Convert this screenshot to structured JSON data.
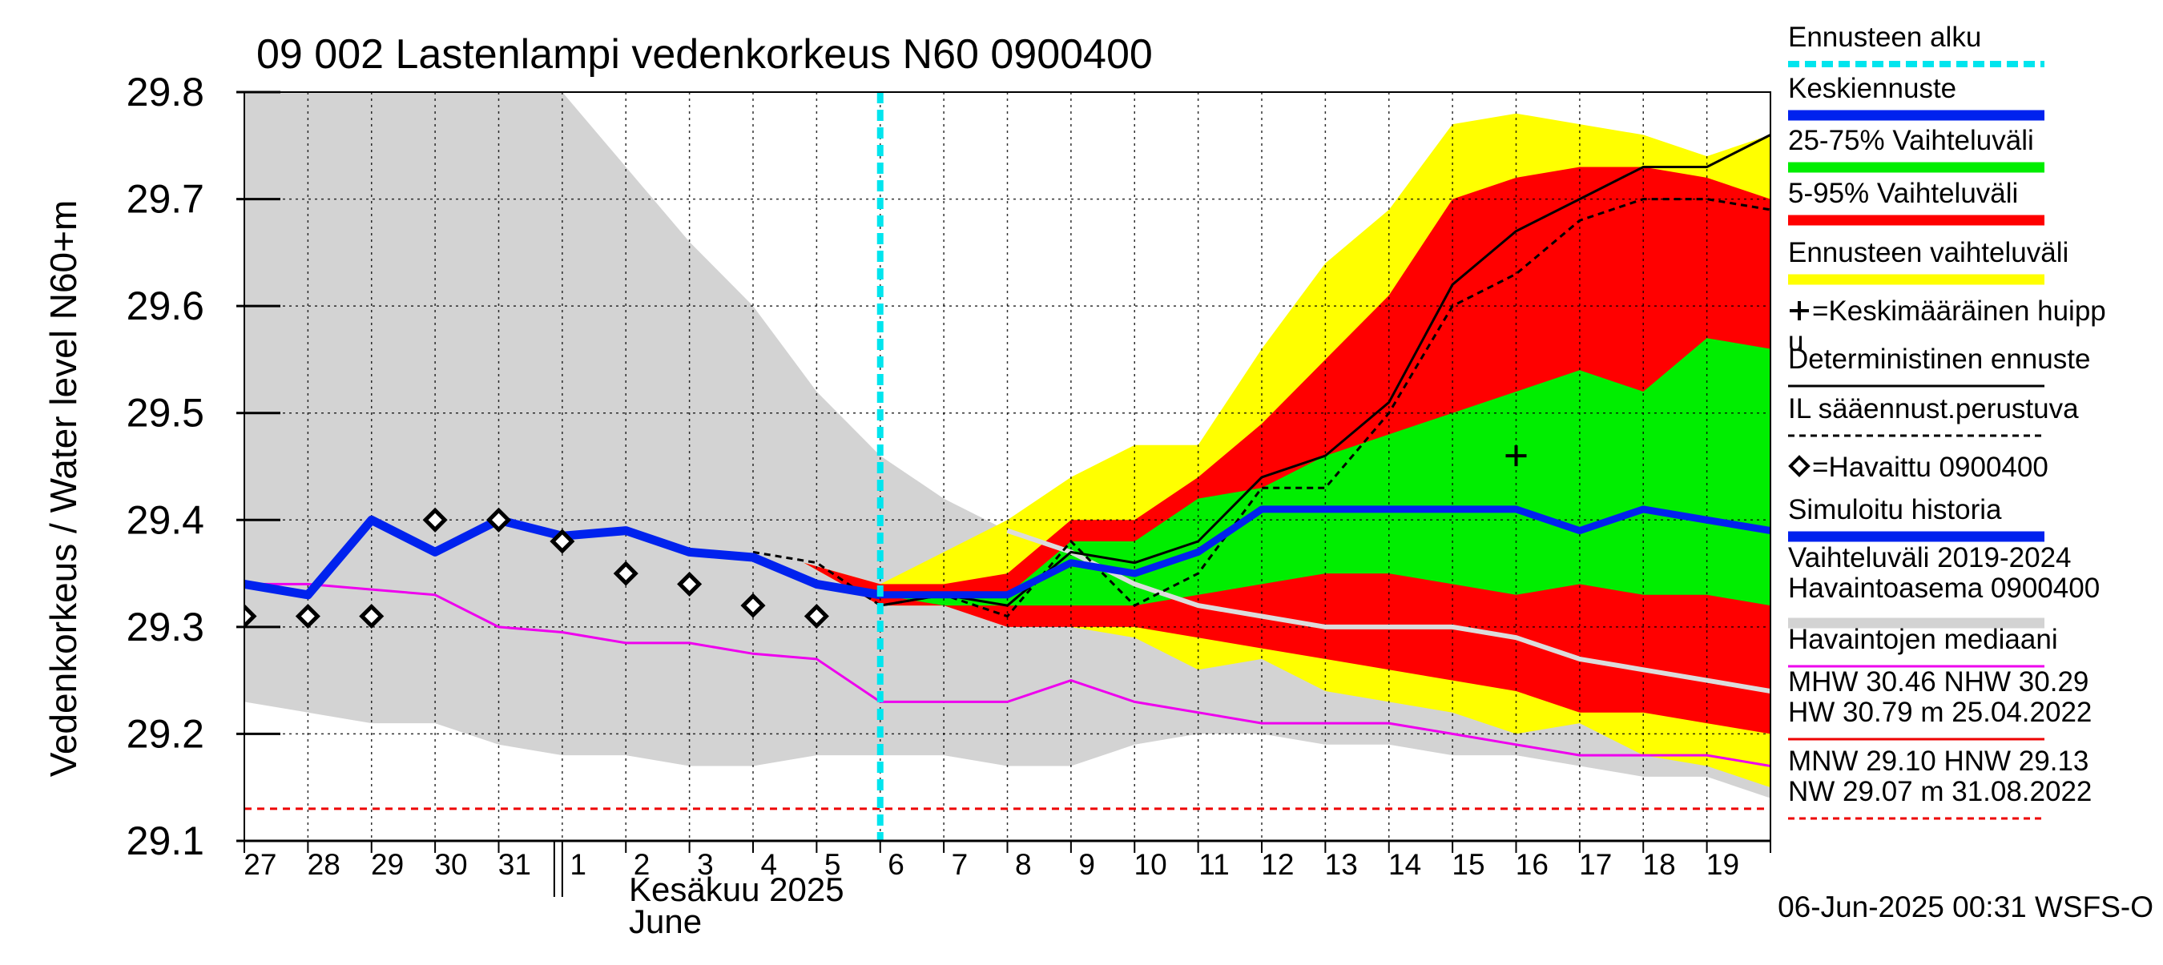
{
  "chart_data": {
    "type": "area",
    "title": "09 002 Lastenlampi vedenkorkeus N60 0900400",
    "ylabel": "Vedenkorkeus / Water level   N60+m",
    "ylim": [
      29.1,
      29.8
    ],
    "y_ticks": [
      "29.1",
      "29.2",
      "29.3",
      "29.4",
      "29.5",
      "29.6",
      "29.7",
      "29.8"
    ],
    "x_day_labels": [
      "27",
      "28",
      "29",
      "30",
      "31",
      "1",
      "2",
      "3",
      "4",
      "5",
      "6",
      "7",
      "8",
      "9",
      "10",
      "11",
      "12",
      "13",
      "14",
      "15",
      "16",
      "17",
      "18",
      "19"
    ],
    "month_label_fi": "Kesäkuu  2025",
    "month_label_en": "June",
    "timestamp": "06-Jun-2025 00:31 WSFS-O",
    "forecast_start_index": 10,
    "grid": true,
    "legend_placement": "right",
    "legend": [
      {
        "label": "Ennusteen alku",
        "color": "#00e5ee",
        "style": "dotted-thick"
      },
      {
        "label": "Keskiennuste",
        "color": "#0022ee",
        "style": "thick"
      },
      {
        "label": "25-75% Vaihteluväli",
        "color": "#00ee00",
        "style": "thick"
      },
      {
        "label": "5-95% Vaihteluväli",
        "color": "#ff0000",
        "style": "thick"
      },
      {
        "label": "Ennusteen vaihteluväli",
        "color": "#ffff00",
        "style": "thick"
      },
      {
        "label": "=Keskimääräinen huipp",
        "label2": "u",
        "color": "#000000",
        "style": "plus"
      },
      {
        "label": "Deterministinen ennuste",
        "color": "#000000",
        "style": "line"
      },
      {
        "label": "IL sääennust.perustuva",
        "color": "#000000",
        "style": "dashed"
      },
      {
        "label": "=Havaittu 0900400",
        "color": "#000000",
        "style": "diamond"
      },
      {
        "label": "Simuloitu historia",
        "color": "#0022ee",
        "style": "thick"
      },
      {
        "label": "Vaihteluväli 2019-2024",
        "label2": " Havaintoasema 0900400",
        "color": "#d3d3d3",
        "style": "thick"
      },
      {
        "label": "Havaintojen mediaani",
        "color": "#ee00ee",
        "style": "line"
      },
      {
        "label": "MHW  30.46 NHW  30.29",
        "label2": "HW  30.79 m 25.04.2022",
        "color": "#ee0000",
        "style": "line"
      },
      {
        "label": "MNW  29.10 HNW  29.13",
        "label2": "NW  29.07 m 31.08.2022",
        "color": "#ee0000",
        "style": "dashed"
      }
    ],
    "reference_line": {
      "name": "HNW",
      "y": 29.13,
      "color": "#ee0000"
    },
    "series": {
      "hist_range_x": [
        0,
        1,
        2,
        3,
        4,
        5,
        6,
        7,
        8,
        9,
        10,
        11,
        12,
        13,
        14,
        15,
        16,
        17,
        18,
        19,
        20,
        21,
        22,
        23,
        24
      ],
      "hist_range_upper": [
        29.8,
        29.8,
        29.8,
        29.8,
        29.8,
        29.8,
        29.73,
        29.66,
        29.6,
        29.52,
        29.46,
        29.42,
        29.39,
        29.36,
        29.34,
        29.32,
        29.31,
        29.3,
        29.3,
        29.3,
        29.29,
        29.27,
        29.25,
        29.24,
        29.23
      ],
      "hist_range_lower": [
        29.23,
        29.22,
        29.21,
        29.21,
        29.19,
        29.18,
        29.18,
        29.17,
        29.17,
        29.18,
        29.18,
        29.18,
        29.17,
        29.17,
        29.19,
        29.2,
        29.2,
        29.19,
        29.19,
        29.18,
        29.18,
        29.17,
        29.16,
        29.16,
        29.14
      ],
      "forecast_x": [
        8.8,
        10,
        11,
        12,
        13,
        14,
        15,
        16,
        17,
        18,
        19,
        20,
        21,
        22,
        23,
        24
      ],
      "envelope_upper": [
        29.36,
        29.34,
        29.37,
        29.4,
        29.44,
        29.47,
        29.47,
        29.56,
        29.64,
        29.69,
        29.77,
        29.78,
        29.77,
        29.76,
        29.74,
        29.76
      ],
      "envelope_lower": [
        29.36,
        29.32,
        29.32,
        29.31,
        29.3,
        29.29,
        29.26,
        29.27,
        29.24,
        29.23,
        29.22,
        29.2,
        29.21,
        29.18,
        29.17,
        29.15
      ],
      "p5_95_upper": [
        29.36,
        29.34,
        29.34,
        29.35,
        29.4,
        29.4,
        29.44,
        29.49,
        29.55,
        29.61,
        29.7,
        29.72,
        29.73,
        29.73,
        29.72,
        29.7
      ],
      "p5_95_lower": [
        29.36,
        29.32,
        29.32,
        29.3,
        29.3,
        29.3,
        29.29,
        29.28,
        29.27,
        29.26,
        29.25,
        29.24,
        29.22,
        29.22,
        29.21,
        29.2
      ],
      "p25_75_upper": [
        29.36,
        29.33,
        29.33,
        29.33,
        29.38,
        29.38,
        29.42,
        29.43,
        29.46,
        29.48,
        29.5,
        29.52,
        29.54,
        29.52,
        29.57,
        29.56
      ],
      "p25_75_lower": [
        29.36,
        29.33,
        29.32,
        29.32,
        29.32,
        29.32,
        29.33,
        29.34,
        29.35,
        29.35,
        29.34,
        29.33,
        29.34,
        29.33,
        29.33,
        29.32
      ],
      "observed_x": [
        0,
        1,
        2,
        3,
        4,
        5,
        6,
        7,
        8,
        9
      ],
      "observed_y": [
        29.31,
        29.31,
        29.31,
        29.4,
        29.4,
        29.38,
        29.35,
        29.34,
        29.32,
        29.31
      ],
      "simulated_x": [
        0,
        1,
        2,
        3,
        4,
        5,
        6,
        7,
        8,
        9,
        10
      ],
      "simulated_y": [
        29.34,
        29.33,
        29.4,
        29.37,
        29.4,
        29.385,
        29.39,
        29.37,
        29.365,
        29.34,
        29.33
      ],
      "mean_forecast_x": [
        10,
        11,
        12,
        13,
        14,
        15,
        16,
        17,
        18,
        19,
        20,
        21,
        22,
        23,
        24
      ],
      "mean_forecast_y": [
        29.33,
        29.33,
        29.33,
        29.36,
        29.35,
        29.37,
        29.41,
        29.41,
        29.41,
        29.41,
        29.41,
        29.39,
        29.41,
        29.4,
        29.39
      ],
      "deterministic_x": [
        10,
        11,
        12,
        13,
        14,
        15,
        16,
        17,
        18,
        19,
        20,
        21,
        22,
        23,
        24
      ],
      "deterministic_y": [
        29.32,
        29.33,
        29.32,
        29.37,
        29.36,
        29.38,
        29.44,
        29.46,
        29.51,
        29.62,
        29.67,
        29.7,
        29.73,
        29.73,
        29.76
      ],
      "il_forecast_x": [
        8,
        9,
        10,
        11,
        12,
        13,
        14,
        15,
        16,
        17,
        18,
        19,
        20,
        21,
        22,
        23,
        24
      ],
      "il_forecast_y": [
        29.37,
        29.36,
        29.32,
        29.33,
        29.31,
        29.38,
        29.32,
        29.35,
        29.43,
        29.43,
        29.5,
        29.6,
        29.63,
        29.68,
        29.7,
        29.7,
        29.69
      ],
      "median_x": [
        0,
        1,
        2,
        3,
        4,
        5,
        6,
        7,
        8,
        9,
        10,
        11,
        12,
        13,
        14,
        15,
        16,
        17,
        18,
        19,
        20,
        21,
        22,
        23,
        24
      ],
      "median_y": [
        29.34,
        29.34,
        29.335,
        29.33,
        29.3,
        29.295,
        29.285,
        29.285,
        29.275,
        29.27,
        29.23,
        29.23,
        29.23,
        29.25,
        29.23,
        29.22,
        29.21,
        29.21,
        29.21,
        29.2,
        29.19,
        29.18,
        29.18,
        29.18,
        29.17
      ],
      "simulated_forecast_gray_x": [
        12,
        13,
        14,
        15,
        16,
        17,
        18,
        19,
        20,
        21,
        22,
        23,
        24
      ],
      "simulated_forecast_gray_y": [
        29.39,
        29.37,
        29.34,
        29.32,
        29.31,
        29.3,
        29.3,
        29.3,
        29.29,
        29.27,
        29.26,
        29.25,
        29.24
      ],
      "mean_peak": {
        "x": 20,
        "y": 29.46
      }
    }
  }
}
